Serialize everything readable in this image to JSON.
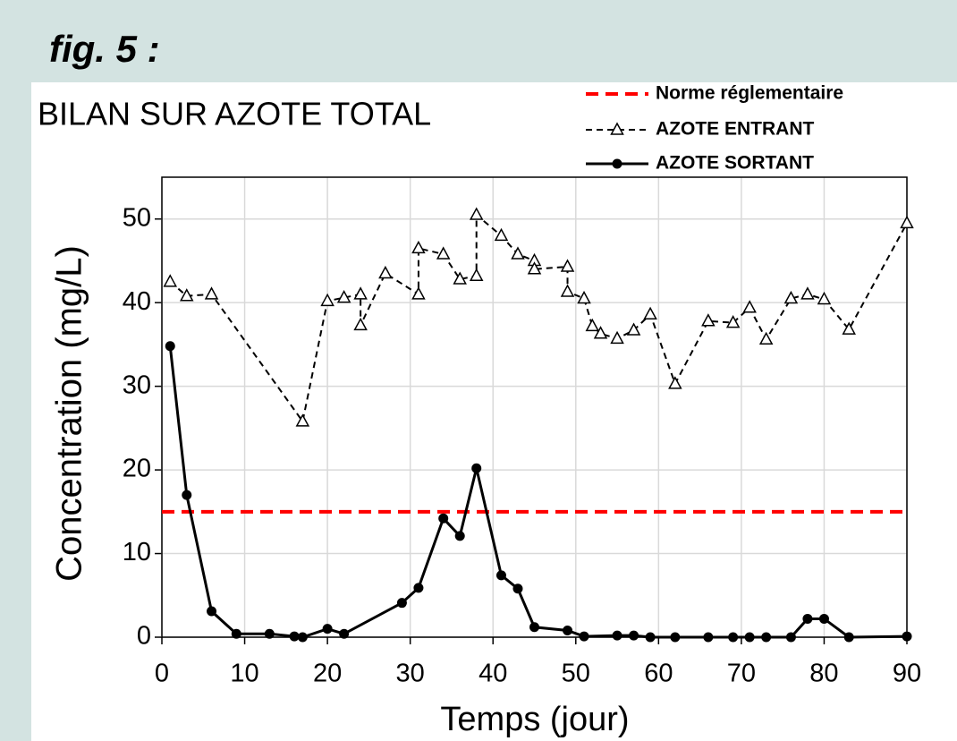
{
  "chart_data": {
    "type": "line",
    "figure_label": "fig. 5 :",
    "title": "BILAN SUR AZOTE TOTAL",
    "x_label": "Temps (jour)",
    "y_label": "Concentration (mg/L)",
    "xlim": [
      0,
      90
    ],
    "ylim": [
      0,
      55
    ],
    "xticks": [
      0,
      10,
      20,
      30,
      40,
      50,
      60,
      70,
      80,
      90
    ],
    "yticks": [
      0,
      10,
      20,
      30,
      40,
      50
    ],
    "grid": true,
    "legend": "top-right",
    "reference_line": {
      "name": "Norme réglementaire",
      "value": 15,
      "color": "#ff0000"
    },
    "series": [
      {
        "name": "AZOTE ENTRANT",
        "color": "#000000",
        "dash": true,
        "marker": "triangle",
        "x": [
          1,
          3,
          6,
          17,
          20,
          22,
          24,
          24,
          27,
          31,
          31,
          34,
          36,
          38,
          38,
          41,
          43,
          45,
          45,
          49,
          49,
          51,
          52,
          53,
          55,
          57,
          59,
          62,
          66,
          69,
          71,
          73,
          76,
          78,
          80,
          83,
          90
        ],
        "values": [
          42.5,
          40.8,
          41,
          25.8,
          40.2,
          40.6,
          41,
          37.3,
          43.5,
          41,
          46.5,
          45.8,
          42.8,
          43.2,
          50.5,
          48,
          45.8,
          45,
          44,
          44.3,
          41.3,
          40.5,
          37.2,
          36.3,
          35.7,
          36.7,
          38.6,
          30.3,
          37.8,
          37.6,
          39.4,
          35.6,
          40.5,
          41,
          40.4,
          36.8,
          49.5
        ]
      },
      {
        "name": "AZOTE SORTANT",
        "color": "#000000",
        "dash": false,
        "marker": "circle",
        "x": [
          1,
          3,
          6,
          9,
          13,
          16,
          17,
          20,
          22,
          29,
          31,
          34,
          36,
          38,
          41,
          43,
          45,
          49,
          51,
          55,
          57,
          59,
          62,
          66,
          69,
          71,
          73,
          76,
          78,
          80,
          83,
          90
        ],
        "values": [
          34.8,
          17,
          3.1,
          0.4,
          0.4,
          0.1,
          0,
          1,
          0.4,
          4.1,
          5.9,
          14.2,
          12.1,
          20.2,
          7.4,
          5.8,
          1.2,
          0.8,
          0.1,
          0.2,
          0.2,
          0,
          0,
          0,
          0,
          0,
          0,
          0,
          2.2,
          2.2,
          0,
          0.1
        ]
      }
    ]
  }
}
